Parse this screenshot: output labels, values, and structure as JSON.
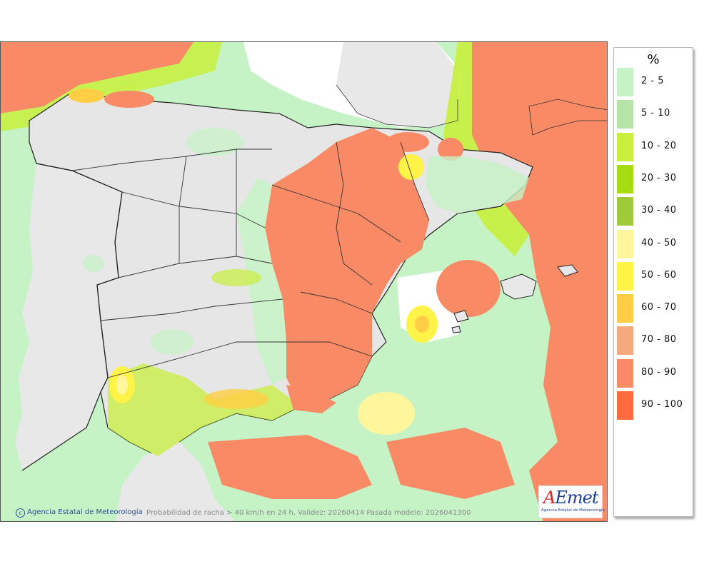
{
  "map": {
    "sea_color": "#ffffff",
    "land_color": "#e8e8e8",
    "relief_color": "#c9c9c9"
  },
  "legend": {
    "title": "%",
    "items": [
      {
        "label": "2 - 5",
        "color": "#c5f3c5"
      },
      {
        "label": "5 - 10",
        "color": "#b5e3a8"
      },
      {
        "label": "10 - 20",
        "color": "#c7ef3c"
      },
      {
        "label": "20 - 30",
        "color": "#a8dc12"
      },
      {
        "label": "30 - 40",
        "color": "#9fcb3a"
      },
      {
        "label": "40 - 50",
        "color": "#fff59a"
      },
      {
        "label": "50 - 60",
        "color": "#fff347"
      },
      {
        "label": "60 - 70",
        "color": "#ffce45"
      },
      {
        "label": "70 - 80",
        "color": "#f5a97d"
      },
      {
        "label": "80 - 90",
        "color": "#f98a66"
      },
      {
        "label": "90 - 100",
        "color": "#ff6b3d"
      }
    ]
  },
  "footer": {
    "agency": "Agencia Estatal de Meteorología",
    "description": "Probabilidad de racha > 40 km/h en 24 h. Validez: 20260414 Pasada modelo: 2026041300"
  },
  "logo": {
    "main": "AEmet",
    "sub": "Agencia Estatal de Meteorología"
  }
}
